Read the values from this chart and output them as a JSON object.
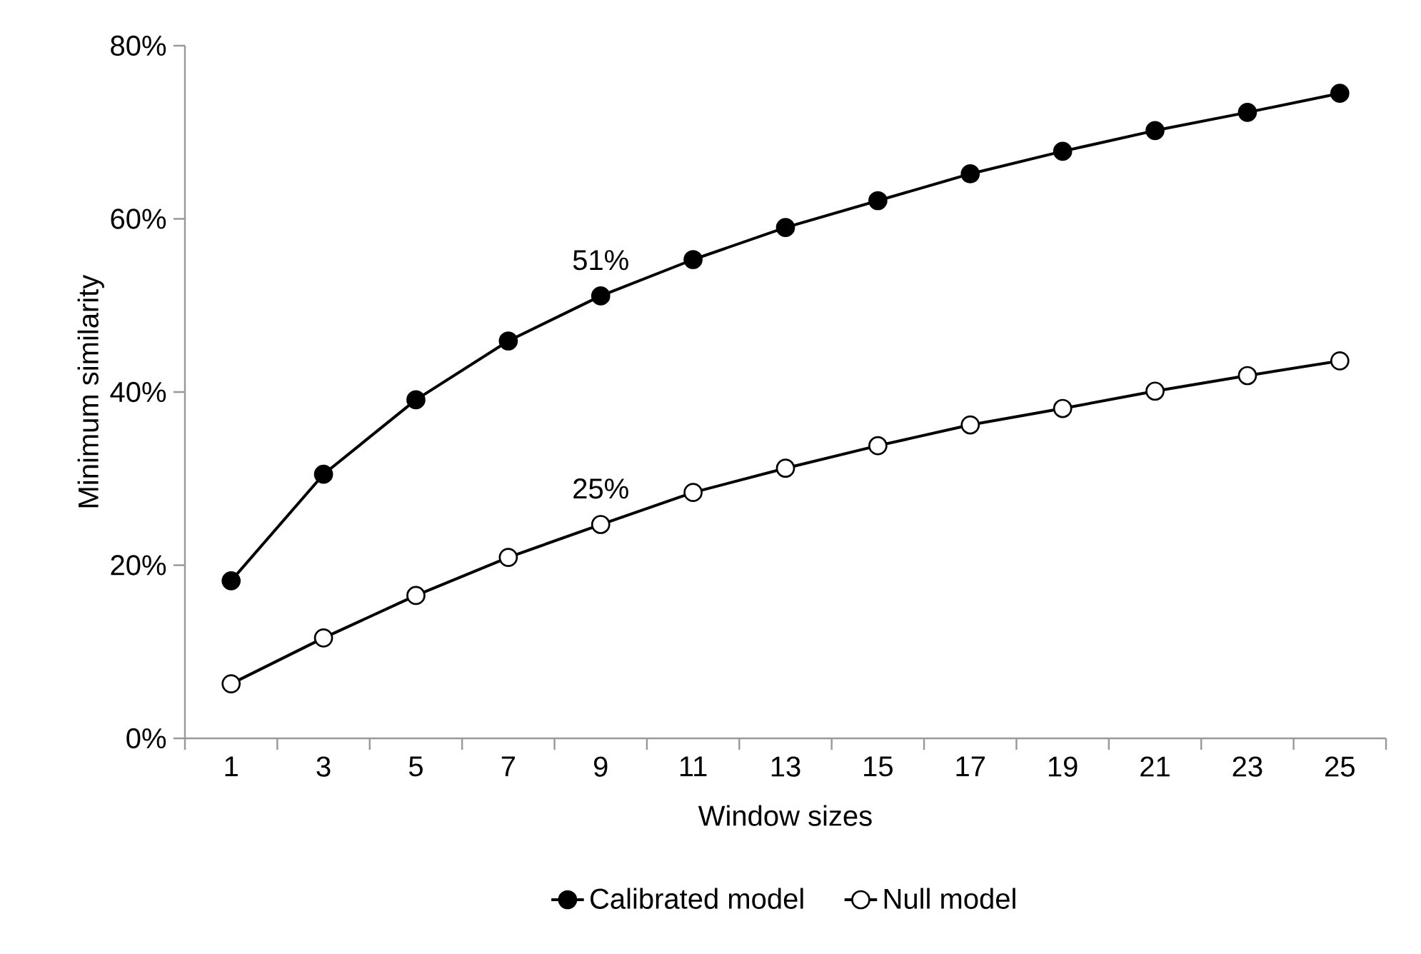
{
  "chart_data": {
    "type": "line",
    "xlabel": "Window sizes",
    "ylabel": "Minimum similarity",
    "categories": [
      "1",
      "3",
      "5",
      "7",
      "9",
      "11",
      "13",
      "15",
      "17",
      "19",
      "21",
      "23",
      "25"
    ],
    "series": [
      {
        "name": "Calibrated model",
        "color": "#000000",
        "values": [
          18.2,
          30.5,
          39.1,
          45.9,
          51.1,
          55.3,
          59.0,
          62.1,
          65.2,
          67.8,
          70.2,
          72.3,
          74.5
        ]
      },
      {
        "name": "Null model",
        "color": "#000000",
        "values": [
          6.3,
          11.6,
          16.5,
          20.9,
          24.7,
          28.4,
          31.2,
          33.8,
          36.2,
          38.1,
          40.1,
          41.9,
          43.6
        ]
      }
    ],
    "ylim": [
      0,
      80
    ],
    "yticks": [
      {
        "value": 0,
        "label": "0%"
      },
      {
        "value": 20,
        "label": "20%"
      },
      {
        "value": 40,
        "label": "40%"
      },
      {
        "value": 60,
        "label": "60%"
      },
      {
        "value": 80,
        "label": "80%"
      }
    ],
    "annotations": [
      {
        "text": "51%",
        "x": "9",
        "y": 51.1
      },
      {
        "text": "25%",
        "x": "9",
        "y": 24.7
      }
    ],
    "legend": "bottom",
    "marker": "circle",
    "grid": false
  }
}
